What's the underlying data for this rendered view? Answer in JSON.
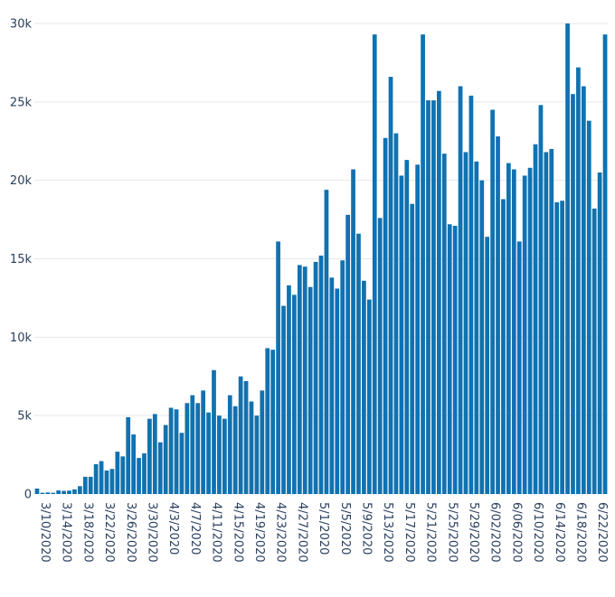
{
  "chart_data": {
    "type": "bar",
    "title": "",
    "xlabel": "",
    "ylabel": "",
    "color": "#1072b0",
    "ylim": [
      0,
      30000
    ],
    "grid": true,
    "legend": "none",
    "y_ticks": [
      {
        "value": 0,
        "label": "0"
      },
      {
        "value": 5000,
        "label": "5k"
      },
      {
        "value": 10000,
        "label": "10k"
      },
      {
        "value": 15000,
        "label": "15k"
      },
      {
        "value": 20000,
        "label": "20k"
      },
      {
        "value": 25000,
        "label": "25k"
      },
      {
        "value": 30000,
        "label": "30k"
      }
    ],
    "x_ticks": [
      {
        "index": 0,
        "label": "3/10/2020"
      },
      {
        "index": 4,
        "label": "3/14/2020"
      },
      {
        "index": 8,
        "label": "3/18/2020"
      },
      {
        "index": 12,
        "label": "3/22/2020"
      },
      {
        "index": 16,
        "label": "3/26/2020"
      },
      {
        "index": 20,
        "label": "3/30/2020"
      },
      {
        "index": 24,
        "label": "4/3/2020"
      },
      {
        "index": 28,
        "label": "4/7/2020"
      },
      {
        "index": 32,
        "label": "4/11/2020"
      },
      {
        "index": 36,
        "label": "4/15/2020"
      },
      {
        "index": 40,
        "label": "4/19/2020"
      },
      {
        "index": 44,
        "label": "4/23/2020"
      },
      {
        "index": 48,
        "label": "4/27/2020"
      },
      {
        "index": 52,
        "label": "5/1/2020"
      },
      {
        "index": 56,
        "label": "5/5/2020"
      },
      {
        "index": 60,
        "label": "5/9/2020"
      },
      {
        "index": 64,
        "label": "5/13/2020"
      },
      {
        "index": 68,
        "label": "5/17/2020"
      },
      {
        "index": 72,
        "label": "5/21/2020"
      },
      {
        "index": 76,
        "label": "5/25/2020"
      },
      {
        "index": 80,
        "label": "5/29/2020"
      },
      {
        "index": 84,
        "label": "6/02/2020"
      },
      {
        "index": 88,
        "label": "6/06/2020"
      },
      {
        "index": 92,
        "label": "6/10/2020"
      },
      {
        "index": 96,
        "label": "6/14/2020"
      },
      {
        "index": 100,
        "label": "6/18/2020"
      },
      {
        "index": 104,
        "label": "6/22/2020"
      }
    ],
    "values": [
      350,
      80,
      100,
      80,
      230,
      200,
      220,
      300,
      500,
      1100,
      1100,
      1900,
      2100,
      1500,
      1600,
      2700,
      2400,
      4900,
      3800,
      2300,
      2600,
      4800,
      5100,
      3300,
      4400,
      5500,
      5400,
      3900,
      5800,
      6300,
      5800,
      6600,
      5200,
      7900,
      5000,
      4800,
      6300,
      5600,
      7500,
      7200,
      5900,
      5000,
      6600,
      9300,
      9200,
      16100,
      12000,
      13300,
      12700,
      14600,
      14500,
      13200,
      14800,
      15200,
      19400,
      13800,
      13100,
      14900,
      17800,
      20700,
      16600,
      13600,
      12400,
      29300,
      17600,
      22700,
      26600,
      23000,
      20300,
      21300,
      18500,
      21000,
      29300,
      25100,
      25100,
      25700,
      21700,
      17200,
      17100,
      26000,
      21800,
      25400,
      21200,
      20000,
      16400,
      24500,
      22800,
      18800,
      21100,
      20700,
      16100,
      20300,
      20800,
      22300,
      24800,
      21800,
      22000,
      18600,
      18700,
      30000,
      25500,
      27200,
      26000,
      23800,
      18200,
      20500,
      29300
    ]
  }
}
